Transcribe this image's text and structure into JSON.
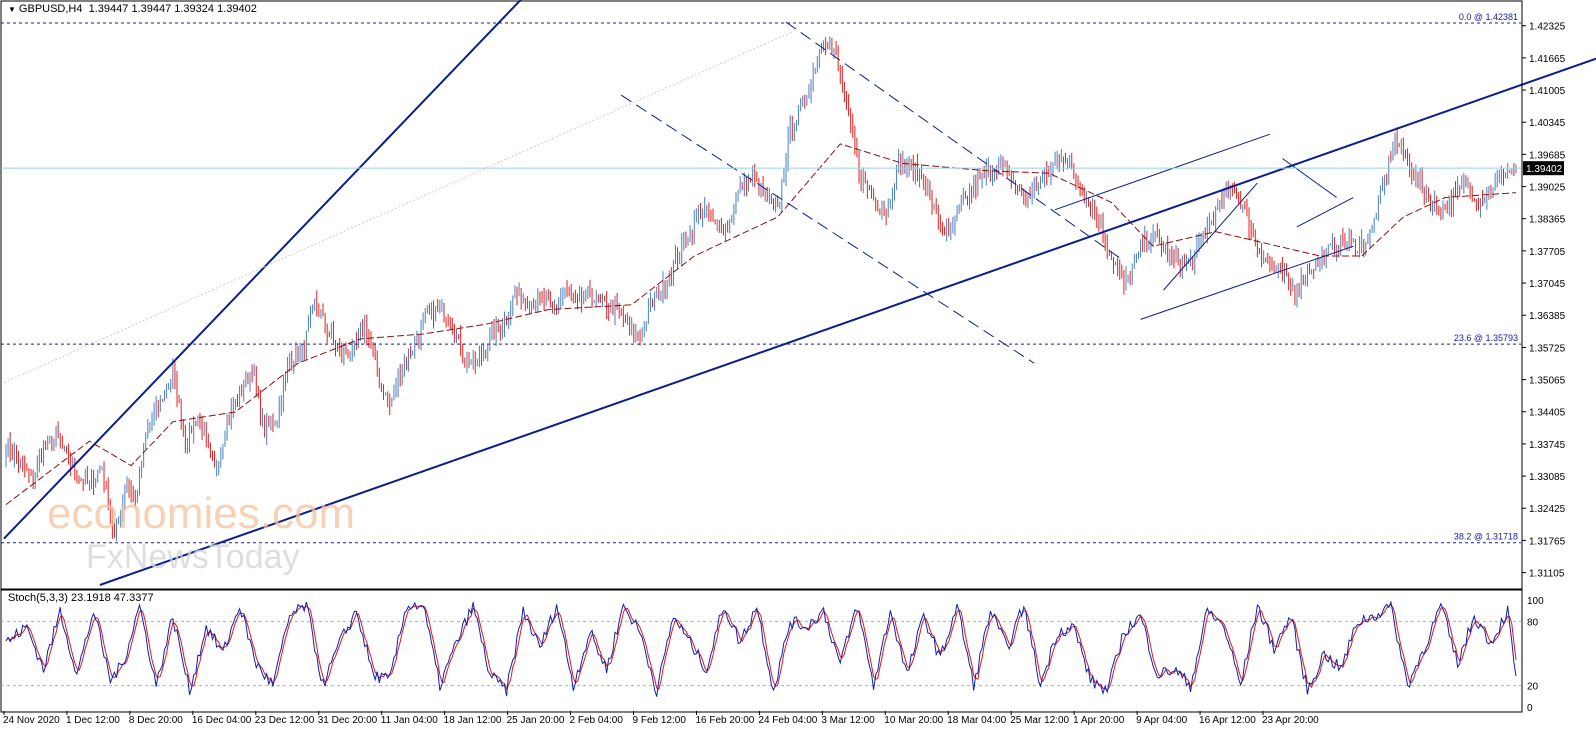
{
  "header": {
    "symbol": "GBPUSD,H4",
    "ohlc": "1.39447 1.39447 1.39324 1.39402"
  },
  "stoch_header": "Stoch(5,3,3) 23.1918 47.3377",
  "watermark": {
    "line1": "economies.com",
    "line2": "FxNewsToday"
  },
  "colors": {
    "bull": "#4a7fbf",
    "bear": "#e0201e",
    "ma": "#8b1010",
    "trend": "#0a1e8c",
    "fib": "#1a1aa0",
    "stoch_main": "#1020b0",
    "stoch_signal": "#e01818",
    "price_line": "#9ad0e6",
    "grid_border": "#000000"
  },
  "chart_data": [
    {
      "type": "candlestick",
      "symbol": "GBPUSD",
      "timeframe": "H4",
      "ylim": [
        1.3085,
        1.4275
      ],
      "y_ticks": [
        "1.42325",
        "1.41665",
        "1.41005",
        "1.40345",
        "1.39685",
        "1.39025",
        "1.38365",
        "1.37705",
        "1.37045",
        "1.36385",
        "1.35725",
        "1.35065",
        "1.34405",
        "1.33745",
        "1.33085",
        "1.32425",
        "1.31765",
        "1.31105"
      ],
      "x_ticks": [
        "24 Nov 2020",
        "1 Dec 12:00",
        "8 Dec 20:00",
        "16 Dec 04:00",
        "23 Dec 12:00",
        "31 Dec 20:00",
        "11 Jan 04:00",
        "18 Jan 12:00",
        "25 Jan 20:00",
        "2 Feb 04:00",
        "9 Feb 12:00",
        "16 Feb 20:00",
        "24 Feb 04:00",
        "3 Mar 12:00",
        "10 Mar 20:00",
        "18 Mar 04:00",
        "25 Mar 12:00",
        "1 Apr 20:00",
        "9 Apr 04:00",
        "16 Apr 12:00",
        "23 Apr 20:00"
      ],
      "current_price": "1.39402",
      "fib_levels": [
        {
          "label": "0.0 @ 1.42381",
          "value": 1.42381
        },
        {
          "label": "23.6 @ 1.35793",
          "value": 1.35793
        },
        {
          "label": "38.2 @ 1.31718",
          "value": 1.31718
        }
      ],
      "anchor_closes": [
        [
          0,
          1.337
        ],
        [
          6,
          1.334
        ],
        [
          12,
          1.33
        ],
        [
          18,
          1.336
        ],
        [
          24,
          1.339
        ],
        [
          30,
          1.334
        ],
        [
          36,
          1.33
        ],
        [
          40,
          1.329
        ],
        [
          46,
          1.333
        ],
        [
          52,
          1.318
        ],
        [
          58,
          1.33
        ],
        [
          62,
          1.325
        ],
        [
          68,
          1.341
        ],
        [
          74,
          1.346
        ],
        [
          80,
          1.352
        ],
        [
          86,
          1.338
        ],
        [
          92,
          1.343
        ],
        [
          100,
          1.332
        ],
        [
          106,
          1.342
        ],
        [
          112,
          1.348
        ],
        [
          118,
          1.353
        ],
        [
          124,
          1.34
        ],
        [
          130,
          1.343
        ],
        [
          136,
          1.355
        ],
        [
          142,
          1.356
        ],
        [
          148,
          1.366
        ],
        [
          154,
          1.361
        ],
        [
          160,
          1.356
        ],
        [
          166,
          1.356
        ],
        [
          172,
          1.362
        ],
        [
          178,
          1.352
        ],
        [
          184,
          1.345
        ],
        [
          190,
          1.354
        ],
        [
          196,
          1.358
        ],
        [
          202,
          1.364
        ],
        [
          208,
          1.365
        ],
        [
          214,
          1.362
        ],
        [
          220,
          1.355
        ],
        [
          226,
          1.354
        ],
        [
          232,
          1.359
        ],
        [
          238,
          1.362
        ],
        [
          244,
          1.368
        ],
        [
          250,
          1.367
        ],
        [
          256,
          1.367
        ],
        [
          262,
          1.365
        ],
        [
          268,
          1.369
        ],
        [
          274,
          1.366
        ],
        [
          280,
          1.368
        ],
        [
          286,
          1.366
        ],
        [
          292,
          1.365
        ],
        [
          298,
          1.362
        ],
        [
          304,
          1.359
        ],
        [
          310,
          1.367
        ],
        [
          316,
          1.37
        ],
        [
          322,
          1.376
        ],
        [
          328,
          1.381
        ],
        [
          334,
          1.386
        ],
        [
          340,
          1.382
        ],
        [
          346,
          1.382
        ],
        [
          352,
          1.39
        ],
        [
          358,
          1.392
        ],
        [
          364,
          1.388
        ],
        [
          370,
          1.385
        ],
        [
          376,
          1.402
        ],
        [
          380,
          1.405
        ],
        [
          386,
          1.412
        ],
        [
          392,
          1.421
        ],
        [
          398,
          1.417
        ],
        [
          404,
          1.404
        ],
        [
          410,
          1.392
        ],
        [
          416,
          1.388
        ],
        [
          422,
          1.385
        ],
        [
          428,
          1.395
        ],
        [
          434,
          1.394
        ],
        [
          440,
          1.392
        ],
        [
          446,
          1.384
        ],
        [
          452,
          1.38
        ],
        [
          458,
          1.386
        ],
        [
          464,
          1.39
        ],
        [
          470,
          1.393
        ],
        [
          476,
          1.395
        ],
        [
          482,
          1.392
        ],
        [
          488,
          1.388
        ],
        [
          494,
          1.39
        ],
        [
          500,
          1.393
        ],
        [
          506,
          1.397
        ],
        [
          512,
          1.393
        ],
        [
          518,
          1.388
        ],
        [
          524,
          1.383
        ],
        [
          530,
          1.376
        ],
        [
          536,
          1.37
        ],
        [
          540,
          1.373
        ],
        [
          546,
          1.379
        ],
        [
          552,
          1.38
        ],
        [
          558,
          1.376
        ],
        [
          564,
          1.374
        ],
        [
          570,
          1.376
        ],
        [
          576,
          1.382
        ],
        [
          582,
          1.386
        ],
        [
          588,
          1.391
        ],
        [
          594,
          1.385
        ],
        [
          600,
          1.378
        ],
        [
          606,
          1.374
        ],
        [
          612,
          1.372
        ],
        [
          618,
          1.369
        ],
        [
          624,
          1.373
        ],
        [
          630,
          1.375
        ],
        [
          636,
          1.378
        ],
        [
          642,
          1.379
        ],
        [
          648,
          1.378
        ],
        [
          654,
          1.38
        ],
        [
          660,
          1.39
        ],
        [
          666,
          1.4
        ],
        [
          670,
          1.397
        ],
        [
          676,
          1.392
        ],
        [
          682,
          1.388
        ],
        [
          688,
          1.385
        ],
        [
          694,
          1.388
        ],
        [
          700,
          1.391
        ],
        [
          706,
          1.387
        ],
        [
          712,
          1.39
        ],
        [
          718,
          1.393
        ],
        [
          724,
          1.394
        ]
      ],
      "ma_anchors": [
        [
          0,
          1.325
        ],
        [
          40,
          1.338
        ],
        [
          60,
          1.333
        ],
        [
          80,
          1.342
        ],
        [
          110,
          1.344
        ],
        [
          140,
          1.354
        ],
        [
          170,
          1.359
        ],
        [
          200,
          1.36
        ],
        [
          230,
          1.362
        ],
        [
          260,
          1.365
        ],
        [
          300,
          1.366
        ],
        [
          330,
          1.376
        ],
        [
          360,
          1.382
        ],
        [
          370,
          1.384
        ],
        [
          400,
          1.399
        ],
        [
          430,
          1.395
        ],
        [
          470,
          1.3935
        ],
        [
          500,
          1.393
        ],
        [
          530,
          1.387
        ],
        [
          550,
          1.378
        ],
        [
          580,
          1.381
        ],
        [
          610,
          1.378
        ],
        [
          630,
          1.376
        ],
        [
          650,
          1.376
        ],
        [
          670,
          1.384
        ],
        [
          690,
          1.388
        ],
        [
          724,
          1.389
        ]
      ],
      "stoch_anchors": [
        [
          0,
          60
        ],
        [
          10,
          75
        ],
        [
          18,
          35
        ],
        [
          26,
          90
        ],
        [
          34,
          30
        ],
        [
          42,
          90
        ],
        [
          50,
          25
        ],
        [
          56,
          40
        ],
        [
          64,
          95
        ],
        [
          72,
          20
        ],
        [
          80,
          85
        ],
        [
          88,
          15
        ],
        [
          96,
          75
        ],
        [
          104,
          50
        ],
        [
          112,
          95
        ],
        [
          120,
          40
        ],
        [
          128,
          20
        ],
        [
          136,
          85
        ],
        [
          144,
          95
        ],
        [
          152,
          20
        ],
        [
          160,
          60
        ],
        [
          168,
          90
        ],
        [
          176,
          30
        ],
        [
          184,
          25
        ],
        [
          192,
          95
        ],
        [
          200,
          95
        ],
        [
          208,
          20
        ],
        [
          216,
          60
        ],
        [
          224,
          95
        ],
        [
          232,
          30
        ],
        [
          240,
          15
        ],
        [
          248,
          90
        ],
        [
          256,
          55
        ],
        [
          264,
          95
        ],
        [
          272,
          20
        ],
        [
          280,
          70
        ],
        [
          288,
          35
        ],
        [
          296,
          95
        ],
        [
          304,
          70
        ],
        [
          312,
          15
        ],
        [
          320,
          85
        ],
        [
          328,
          60
        ],
        [
          336,
          35
        ],
        [
          344,
          95
        ],
        [
          352,
          60
        ],
        [
          360,
          95
        ],
        [
          368,
          15
        ],
        [
          376,
          80
        ],
        [
          384,
          75
        ],
        [
          392,
          90
        ],
        [
          400,
          40
        ],
        [
          408,
          95
        ],
        [
          416,
          20
        ],
        [
          424,
          90
        ],
        [
          432,
          30
        ],
        [
          440,
          85
        ],
        [
          448,
          45
        ],
        [
          456,
          95
        ],
        [
          464,
          20
        ],
        [
          472,
          90
        ],
        [
          480,
          55
        ],
        [
          488,
          95
        ],
        [
          496,
          20
        ],
        [
          504,
          70
        ],
        [
          512,
          75
        ],
        [
          520,
          25
        ],
        [
          528,
          15
        ],
        [
          536,
          70
        ],
        [
          544,
          85
        ],
        [
          552,
          30
        ],
        [
          560,
          35
        ],
        [
          568,
          20
        ],
        [
          576,
          90
        ],
        [
          584,
          75
        ],
        [
          592,
          20
        ],
        [
          600,
          95
        ],
        [
          608,
          55
        ],
        [
          616,
          85
        ],
        [
          624,
          15
        ],
        [
          632,
          50
        ],
        [
          640,
          35
        ],
        [
          648,
          80
        ],
        [
          656,
          85
        ],
        [
          664,
          95
        ],
        [
          672,
          20
        ],
        [
          680,
          55
        ],
        [
          688,
          95
        ],
        [
          696,
          40
        ],
        [
          704,
          85
        ],
        [
          712,
          60
        ],
        [
          720,
          90
        ],
        [
          724,
          25
        ]
      ]
    }
  ]
}
